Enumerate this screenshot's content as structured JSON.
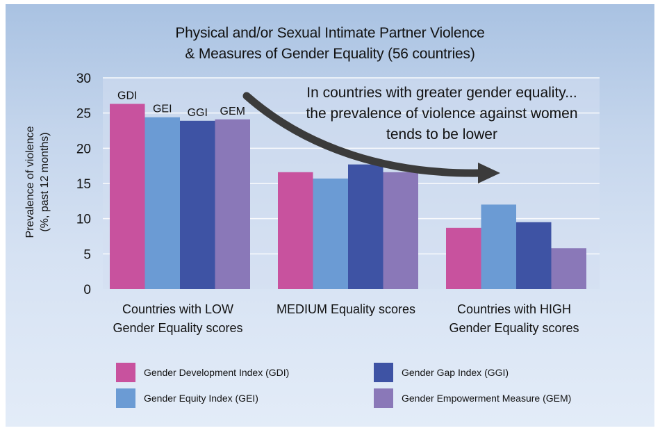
{
  "chart_data": {
    "type": "bar",
    "title": "Physical and/or Sexual Intimate Partner Violence & Measures of Gender Equality (56 countries)",
    "title_lines": [
      "Physical and/or Sexual Intimate Partner Violence",
      "& Measures of Gender Equality (56 countries)"
    ],
    "ylabel_lines": [
      "Prevalence of violence",
      "(%, past 12 months)"
    ],
    "xlabel": "",
    "ylim": [
      0,
      30
    ],
    "yticks": [
      0,
      5,
      10,
      15,
      20,
      25,
      30
    ],
    "grid": true,
    "categories": [
      [
        "Countries with LOW",
        "Gender Equality scores"
      ],
      [
        "MEDIUM Equality scores"
      ],
      [
        "Countries with HIGH",
        "Gender Equality scores"
      ]
    ],
    "series": [
      {
        "name": "Gender Development Index (GDI)",
        "short": "GDI",
        "color": "#c8529e",
        "values": [
          26.3,
          16.6,
          8.7
        ]
      },
      {
        "name": "Gender Equity Index (GEI)",
        "short": "GEI",
        "color": "#6b9bd4",
        "values": [
          24.4,
          15.7,
          12.0
        ]
      },
      {
        "name": "Gender Gap Index (GGI)",
        "short": "GGI",
        "color": "#3e53a4",
        "values": [
          23.9,
          17.7,
          9.5
        ]
      },
      {
        "name": "Gender Empowerment Measure (GEM)",
        "short": "GEM",
        "color": "#8a78b8",
        "values": [
          24.1,
          16.6,
          5.8
        ]
      }
    ],
    "annotation_lines": [
      "In countries with greater gender equality...",
      "the prevalence of violence against women",
      "tends to be lower"
    ],
    "arrow_color": "#3b3b3b"
  }
}
